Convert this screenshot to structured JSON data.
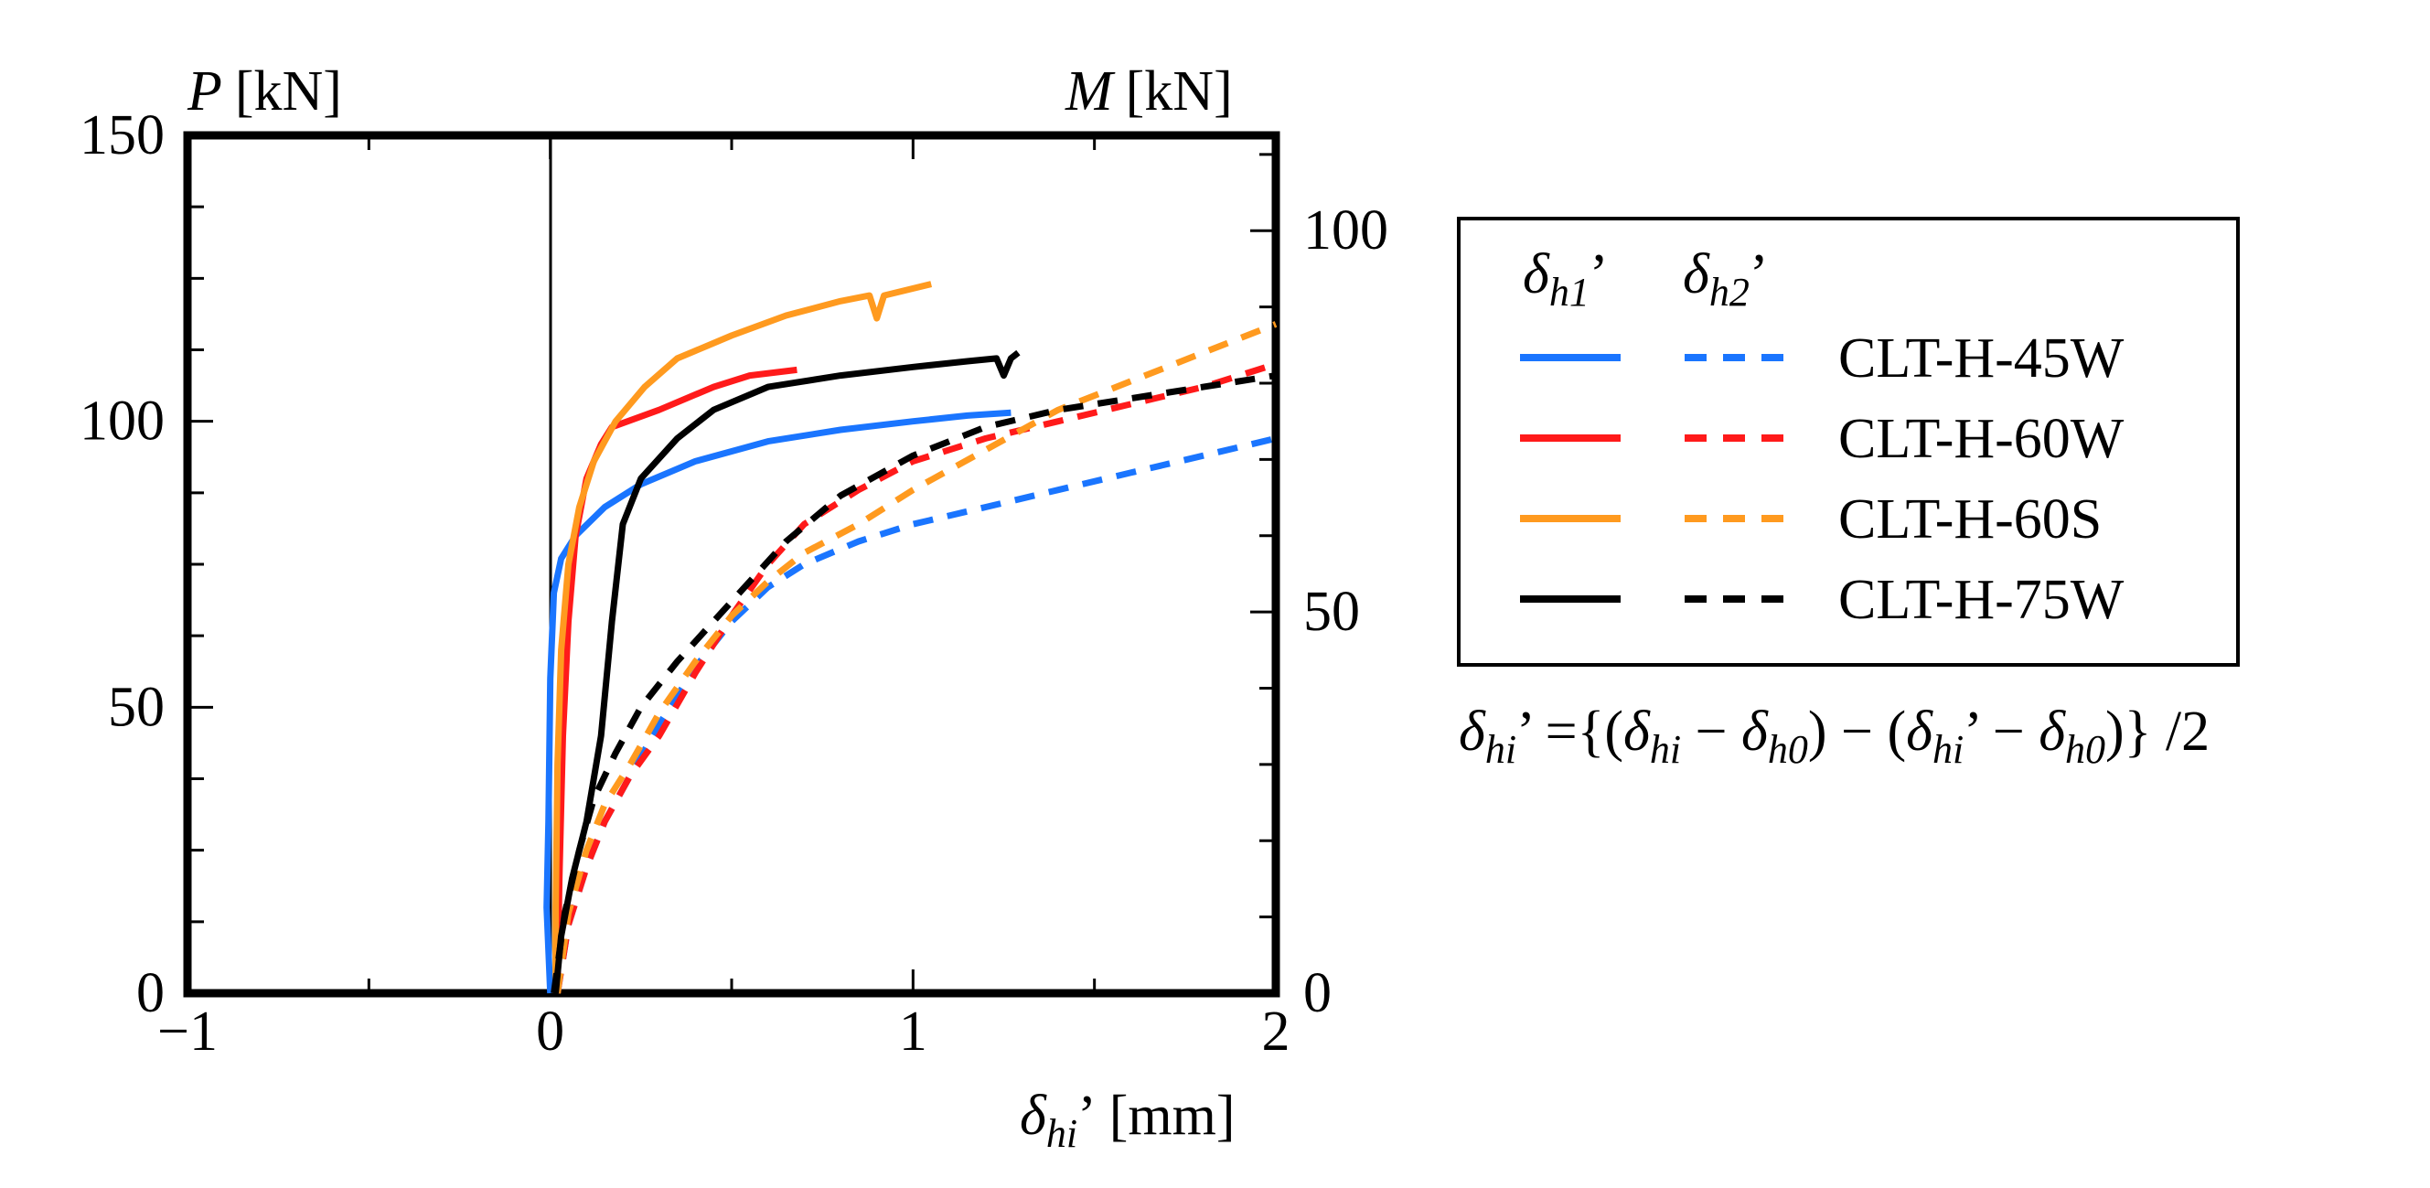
{
  "chart_data": {
    "type": "line",
    "y_left_title": {
      "var": "P",
      "unit": "[kN]"
    },
    "y_right_title": {
      "var": "M",
      "unit": "[kN]"
    },
    "x_title": {
      "var": "δ",
      "sub": "hi",
      "prime": "’",
      "unit": "[mm]"
    },
    "xlim": [
      -1,
      2
    ],
    "ylim_left": [
      0,
      150
    ],
    "ylim_right": [
      0,
      112.5
    ],
    "x_ticks": [
      "−1",
      "0",
      "1",
      "2"
    ],
    "y_left_ticks": [
      "0",
      "50",
      "100",
      "150"
    ],
    "y_right_ticks": [
      "0",
      "50",
      "100"
    ],
    "legend": {
      "header_1": {
        "var": "δ",
        "sub": "h1",
        "prime": "’"
      },
      "header_2": {
        "var": "δ",
        "sub": "h2",
        "prime": "’"
      },
      "entries": [
        {
          "label": "CLT-H-45W",
          "color": "#1a75ff"
        },
        {
          "label": "CLT-H-60W",
          "color": "#ff1a1a"
        },
        {
          "label": "CLT-H-60S",
          "color": "#ff9a1f"
        },
        {
          "label": "CLT-H-75W",
          "color": "#000000"
        }
      ]
    },
    "formula": {
      "lhs": "δ",
      "lhs_sub": "hi",
      "lhs_prime": "’",
      "eq": " ={(",
      "a": "δ",
      "a_sub": "hi",
      "minus1": " − ",
      "b": "δ",
      "b_sub": "h0",
      "mid": ") − (",
      "c": "δ",
      "c_sub": "hi",
      "c_prime": "’",
      "minus2": " − ",
      "d": "δ",
      "d_sub": "h0",
      "tail": ")} /2"
    },
    "series": [
      {
        "name": "CLT-H-45W δh1’",
        "color": "#1a75ff",
        "dash": "solid",
        "points": [
          [
            0,
            0
          ],
          [
            -0.01,
            15
          ],
          [
            -0.005,
            30
          ],
          [
            0.0,
            55
          ],
          [
            0.01,
            70
          ],
          [
            0.03,
            76
          ],
          [
            0.07,
            80
          ],
          [
            0.15,
            85
          ],
          [
            0.25,
            89
          ],
          [
            0.4,
            93
          ],
          [
            0.6,
            96.5
          ],
          [
            0.8,
            98.5
          ],
          [
            1.0,
            100
          ],
          [
            1.15,
            101
          ],
          [
            1.27,
            101.5
          ]
        ]
      },
      {
        "name": "CLT-H-45W δh2’",
        "color": "#1a75ff",
        "dash": "dashed",
        "points": [
          [
            0.02,
            0
          ],
          [
            0.05,
            12
          ],
          [
            0.1,
            22
          ],
          [
            0.15,
            30
          ],
          [
            0.22,
            38
          ],
          [
            0.3,
            47
          ],
          [
            0.4,
            57
          ],
          [
            0.5,
            65
          ],
          [
            0.6,
            71
          ],
          [
            0.7,
            75
          ],
          [
            0.85,
            79
          ],
          [
            1.0,
            82
          ],
          [
            1.2,
            85
          ],
          [
            1.4,
            88
          ],
          [
            1.6,
            91
          ],
          [
            1.8,
            94
          ],
          [
            2.0,
            97
          ]
        ]
      },
      {
        "name": "CLT-H-60W δh1’",
        "color": "#ff1a1a",
        "dash": "solid",
        "points": [
          [
            0.02,
            0
          ],
          [
            0.025,
            20
          ],
          [
            0.035,
            45
          ],
          [
            0.05,
            65
          ],
          [
            0.07,
            80
          ],
          [
            0.1,
            90
          ],
          [
            0.14,
            96
          ],
          [
            0.17,
            99
          ],
          [
            0.3,
            102
          ],
          [
            0.45,
            106
          ],
          [
            0.55,
            108
          ],
          [
            0.68,
            109
          ]
        ]
      },
      {
        "name": "CLT-H-60W δh2’",
        "color": "#ff1a1a",
        "dash": "dashed",
        "points": [
          [
            0.02,
            0
          ],
          [
            0.05,
            12
          ],
          [
            0.1,
            22
          ],
          [
            0.15,
            30
          ],
          [
            0.22,
            38
          ],
          [
            0.3,
            45
          ],
          [
            0.4,
            56
          ],
          [
            0.5,
            66
          ],
          [
            0.6,
            75
          ],
          [
            0.7,
            82
          ],
          [
            0.85,
            88
          ],
          [
            1.0,
            93
          ],
          [
            1.2,
            97
          ],
          [
            1.4,
            100
          ],
          [
            1.6,
            103
          ],
          [
            1.8,
            106
          ],
          [
            2.0,
            110
          ]
        ]
      },
      {
        "name": "CLT-H-60S δh1’",
        "color": "#ff9a1f",
        "dash": "solid",
        "points": [
          [
            0.015,
            0
          ],
          [
            0.015,
            15
          ],
          [
            0.02,
            40
          ],
          [
            0.03,
            60
          ],
          [
            0.05,
            75
          ],
          [
            0.08,
            85
          ],
          [
            0.12,
            93
          ],
          [
            0.18,
            100
          ],
          [
            0.26,
            106
          ],
          [
            0.35,
            111
          ],
          [
            0.5,
            115
          ],
          [
            0.65,
            118.5
          ],
          [
            0.8,
            121
          ],
          [
            0.88,
            122
          ],
          [
            0.9,
            118
          ],
          [
            0.92,
            122
          ],
          [
            1.05,
            124
          ]
        ]
      },
      {
        "name": "CLT-H-60S δh2’",
        "color": "#ff9a1f",
        "dash": "dashed",
        "points": [
          [
            0.02,
            0
          ],
          [
            0.05,
            14
          ],
          [
            0.1,
            25
          ],
          [
            0.15,
            33
          ],
          [
            0.22,
            40
          ],
          [
            0.3,
            49
          ],
          [
            0.4,
            58
          ],
          [
            0.5,
            66
          ],
          [
            0.6,
            72
          ],
          [
            0.7,
            77
          ],
          [
            0.85,
            82
          ],
          [
            1.0,
            88
          ],
          [
            1.2,
            95
          ],
          [
            1.4,
            102
          ],
          [
            1.6,
            107
          ],
          [
            1.8,
            112
          ],
          [
            2.0,
            117
          ]
        ]
      },
      {
        "name": "CLT-H-75W δh1’",
        "color": "#000000",
        "dash": "solid",
        "points": [
          [
            0.015,
            0
          ],
          [
            0.03,
            10
          ],
          [
            0.06,
            20
          ],
          [
            0.1,
            30
          ],
          [
            0.14,
            45
          ],
          [
            0.17,
            65
          ],
          [
            0.2,
            82
          ],
          [
            0.25,
            90
          ],
          [
            0.35,
            97
          ],
          [
            0.45,
            102
          ],
          [
            0.6,
            106
          ],
          [
            0.8,
            108
          ],
          [
            1.0,
            109.5
          ],
          [
            1.15,
            110.5
          ],
          [
            1.23,
            111
          ],
          [
            1.25,
            108
          ],
          [
            1.27,
            111
          ],
          [
            1.29,
            112
          ]
        ]
      },
      {
        "name": "CLT-H-75W δh2’",
        "color": "#000000",
        "dash": "dashed",
        "points": [
          [
            0.01,
            0
          ],
          [
            0.04,
            14
          ],
          [
            0.08,
            25
          ],
          [
            0.12,
            34
          ],
          [
            0.18,
            42
          ],
          [
            0.25,
            50
          ],
          [
            0.35,
            58
          ],
          [
            0.45,
            65
          ],
          [
            0.55,
            72
          ],
          [
            0.65,
            79
          ],
          [
            0.8,
            87
          ],
          [
            1.0,
            94
          ],
          [
            1.2,
            99
          ],
          [
            1.4,
            102
          ],
          [
            1.6,
            104
          ],
          [
            1.8,
            106
          ],
          [
            2.0,
            108
          ]
        ]
      }
    ]
  }
}
